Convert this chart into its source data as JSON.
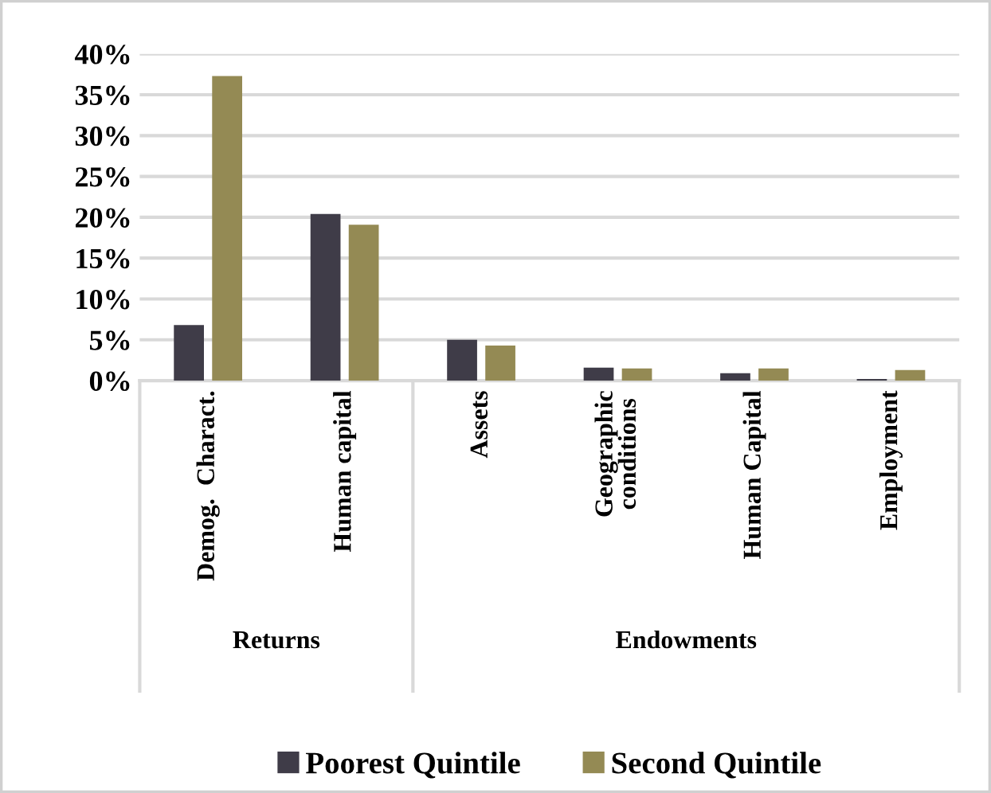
{
  "chart_data": {
    "type": "bar",
    "categories": [
      "Demog.  Charact.",
      "Human capital",
      "Assets",
      "Geographic\nconditions",
      "Human Capital",
      "Employment"
    ],
    "series": [
      {
        "name": "Poorest Quintile",
        "color": "#3f3c48",
        "values": [
          6.8,
          20.4,
          5.0,
          1.6,
          0.9,
          0.2
        ]
      },
      {
        "name": "Second Quintile",
        "color": "#948a54",
        "values": [
          37.3,
          19.1,
          4.3,
          1.5,
          1.5,
          1.3
        ]
      }
    ],
    "annotations": [
      "Returns",
      "Endowments"
    ],
    "ylim": [
      0,
      40
    ],
    "yticks": [
      {
        "value": 0,
        "label": "0%"
      },
      {
        "value": 5,
        "label": "5%"
      },
      {
        "value": 10,
        "label": "10%"
      },
      {
        "value": 15,
        "label": "15%"
      },
      {
        "value": 20,
        "label": "20%"
      },
      {
        "value": 25,
        "label": "25%"
      },
      {
        "value": 30,
        "label": "30%"
      },
      {
        "value": 35,
        "label": "35%"
      },
      {
        "value": 40,
        "label": "40%"
      }
    ],
    "grid": "y",
    "legend": "bottom"
  }
}
